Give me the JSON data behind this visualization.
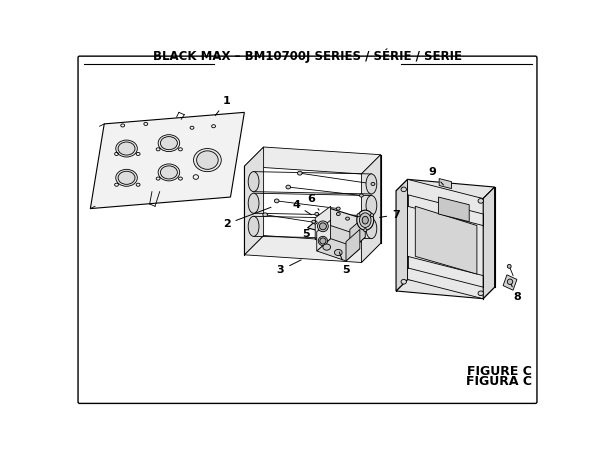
{
  "title": "BLACK MAX – BM10700J SERIES / SÉRIE / SERIE",
  "figure_label": "FIGURE C",
  "figura_label": "FIGURA C",
  "bg_color": "#ffffff",
  "line_color": "#000000",
  "title_fontsize": 8.5,
  "label_fontsize": 8,
  "fig_label_fontsize": 9
}
